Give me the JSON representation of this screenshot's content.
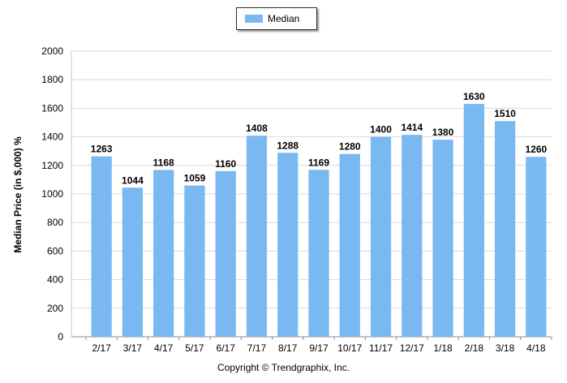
{
  "chart_data": {
    "type": "bar",
    "categories": [
      "2/17",
      "3/17",
      "4/17",
      "5/17",
      "6/17",
      "7/17",
      "8/17",
      "9/17",
      "10/17",
      "11/17",
      "12/17",
      "1/18",
      "2/18",
      "3/18",
      "4/18"
    ],
    "series": [
      {
        "name": "Median",
        "values": [
          1263,
          1044,
          1168,
          1059,
          1160,
          1408,
          1288,
          1169,
          1280,
          1400,
          1414,
          1380,
          1630,
          1510,
          1260
        ],
        "color": "#7ab8f2"
      }
    ],
    "ylabel": "Median Price (in $,000) %",
    "xlabel": "",
    "ylim": [
      0,
      2000
    ],
    "yticks": [
      0,
      200,
      400,
      600,
      800,
      1000,
      1200,
      1400,
      1600,
      1800,
      2000
    ],
    "grid": true,
    "legend": "top-center",
    "data_labels": true
  },
  "footer": {
    "copyright": "Copyright © Trendgraphix, Inc."
  }
}
